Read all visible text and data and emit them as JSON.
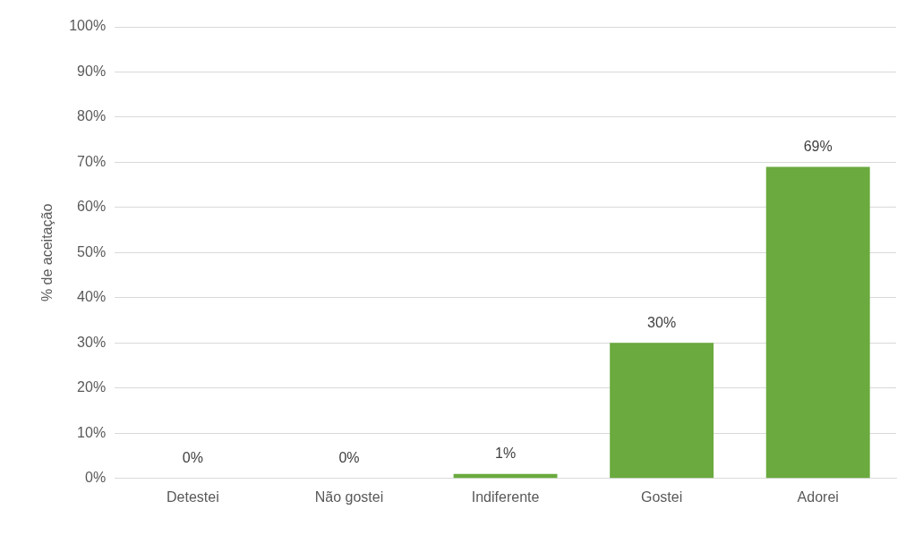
{
  "chart_data": {
    "type": "bar",
    "ylabel": "% de aceitação",
    "categories": [
      "Detestei",
      "Não gostei",
      "Indiferente",
      "Gostei",
      "Adorei"
    ],
    "values": [
      0,
      0,
      1,
      30,
      69
    ],
    "value_labels": [
      "0%",
      "0%",
      "1%",
      "30%",
      "69%"
    ],
    "color": "#6aaa3e",
    "ylim": [
      0,
      100
    ],
    "yticks": [
      {
        "value": 0,
        "label": "0%"
      },
      {
        "value": 10,
        "label": "10%"
      },
      {
        "value": 20,
        "label": "20%"
      },
      {
        "value": 30,
        "label": "30%"
      },
      {
        "value": 40,
        "label": "40%"
      },
      {
        "value": 50,
        "label": "50%"
      },
      {
        "value": 60,
        "label": "60%"
      },
      {
        "value": 70,
        "label": "70%"
      },
      {
        "value": 80,
        "label": "80%"
      },
      {
        "value": 90,
        "label": "90%"
      },
      {
        "value": 100,
        "label": "100%"
      }
    ],
    "grid": "y",
    "legend": false
  }
}
